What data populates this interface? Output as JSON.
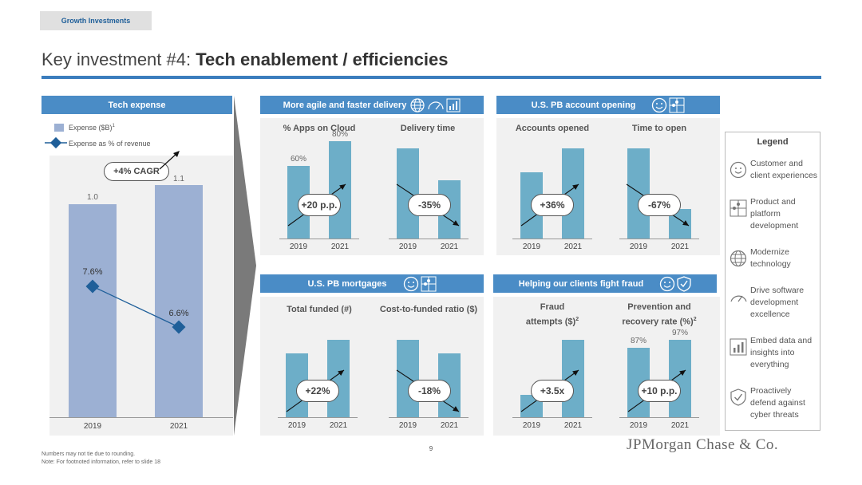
{
  "section_tag": "Growth Investments",
  "title": {
    "prefix": "Key investment #4: ",
    "bold": "Tech enablement / efficiencies"
  },
  "tech_expense": {
    "header": "Tech expense",
    "legend_bar": "Expense ($B)",
    "legend_bar_sup": "1",
    "legend_line": "Expense as % of revenue",
    "cagr": "+4% CAGR",
    "x_labels": [
      "2019",
      "2021"
    ],
    "bar_labels": [
      "1.0",
      "1.1"
    ],
    "pct_labels": [
      "7.6%",
      "6.6%"
    ]
  },
  "agile": {
    "header": "More agile and faster delivery"
  },
  "account_opening": {
    "header": "U.S. PB account opening"
  },
  "mortgages": {
    "header": "U.S. PB mortgages"
  },
  "fraud": {
    "header": "Helping our clients fight fraud"
  },
  "charts": {
    "apps": {
      "title": "% Apps on Cloud",
      "x": [
        "2019",
        "2021"
      ],
      "labels": [
        "60%",
        "80%"
      ],
      "change": "+20 p.p."
    },
    "delivery": {
      "title": "Delivery time",
      "x": [
        "2019",
        "2021"
      ],
      "change": "-35%"
    },
    "accounts": {
      "title": "Accounts opened",
      "x": [
        "2019",
        "2021"
      ],
      "change": "+36%"
    },
    "time_open": {
      "title": "Time to open",
      "x": [
        "2019",
        "2021"
      ],
      "change": "-67%"
    },
    "total_funded": {
      "title": "Total funded (#)",
      "x": [
        "2019",
        "2021"
      ],
      "change": "+22%"
    },
    "cost_funded": {
      "title": "Cost-to-funded ratio ($)",
      "x": [
        "2019",
        "2021"
      ],
      "change": "-18%"
    },
    "fraud_attempts": {
      "title_l1": "Fraud",
      "title_l2": "attempts ($)",
      "title_sup": "2",
      "x": [
        "2019",
        "2021"
      ],
      "change": "+3.5x"
    },
    "prevention": {
      "title_l1": "Prevention and",
      "title_l2": "recovery rate (%)",
      "title_sup": "2",
      "x": [
        "2019",
        "2021"
      ],
      "labels": [
        "87%",
        "97%"
      ],
      "change": "+10 p.p."
    }
  },
  "legend": {
    "title": "Legend",
    "items": [
      {
        "icon": "smiley-icon",
        "text_l1": "Customer and",
        "text_l2": "client experiences",
        "text_l3": ""
      },
      {
        "icon": "puzzle-icon",
        "text_l1": "Product and",
        "text_l2": "platform",
        "text_l3": "development"
      },
      {
        "icon": "globe-icon",
        "text_l1": "Modernize",
        "text_l2": "technology",
        "text_l3": ""
      },
      {
        "icon": "speedometer-icon",
        "text_l1": "Drive software",
        "text_l2": "development",
        "text_l3": "excellence"
      },
      {
        "icon": "bar-chart-icon",
        "text_l1": "Embed data and",
        "text_l2": "insights into",
        "text_l3": "everything"
      },
      {
        "icon": "shield-icon",
        "text_l1": "Proactively",
        "text_l2": "defend against",
        "text_l3": "cyber threats"
      }
    ]
  },
  "footnotes": [
    "Numbers may not tie due to rounding.",
    "Note: For footnoted information, refer to slide 18"
  ],
  "page_number": "9",
  "logo": "JPMorgan Chase & Co.",
  "colors": {
    "header_blue": "#4a8cc6",
    "bar_teal": "#6daec8",
    "bar_periwinkle": "#9cb0d3",
    "line_blue": "#1f5f99"
  },
  "chart_data": [
    {
      "type": "bar",
      "title": "Tech expense",
      "categories": [
        "2019",
        "2021"
      ],
      "series": [
        {
          "name": "Expense ($B)",
          "values": [
            1.0,
            1.1
          ]
        }
      ],
      "cagr": "+4% CAGR"
    },
    {
      "type": "line",
      "title": "Tech expense",
      "categories": [
        "2019",
        "2021"
      ],
      "series": [
        {
          "name": "Expense as % of revenue",
          "values": [
            7.6,
            6.6
          ]
        }
      ]
    },
    {
      "type": "bar",
      "title": "% Apps on Cloud",
      "categories": [
        "2019",
        "2021"
      ],
      "values": [
        60,
        80
      ],
      "change": "+20 p.p."
    },
    {
      "type": "bar",
      "title": "Delivery time",
      "categories": [
        "2019",
        "2021"
      ],
      "values": [
        1.0,
        0.65
      ],
      "change": "-35%"
    },
    {
      "type": "bar",
      "title": "Accounts opened",
      "categories": [
        "2019",
        "2021"
      ],
      "values": [
        1.0,
        1.36
      ],
      "change": "+36%"
    },
    {
      "type": "bar",
      "title": "Time to open",
      "categories": [
        "2019",
        "2021"
      ],
      "values": [
        1.0,
        0.33
      ],
      "change": "-67%"
    },
    {
      "type": "bar",
      "title": "Total funded (#)",
      "categories": [
        "2019",
        "2021"
      ],
      "values": [
        1.0,
        1.22
      ],
      "change": "+22%"
    },
    {
      "type": "bar",
      "title": "Cost-to-funded ratio ($)",
      "categories": [
        "2019",
        "2021"
      ],
      "values": [
        1.0,
        0.82
      ],
      "change": "-18%"
    },
    {
      "type": "bar",
      "title": "Fraud attempts ($)",
      "categories": [
        "2019",
        "2021"
      ],
      "values": [
        1.0,
        3.5
      ],
      "change": "+3.5x"
    },
    {
      "type": "bar",
      "title": "Prevention and recovery rate (%)",
      "categories": [
        "2019",
        "2021"
      ],
      "values": [
        87,
        97
      ],
      "change": "+10 p.p."
    }
  ]
}
